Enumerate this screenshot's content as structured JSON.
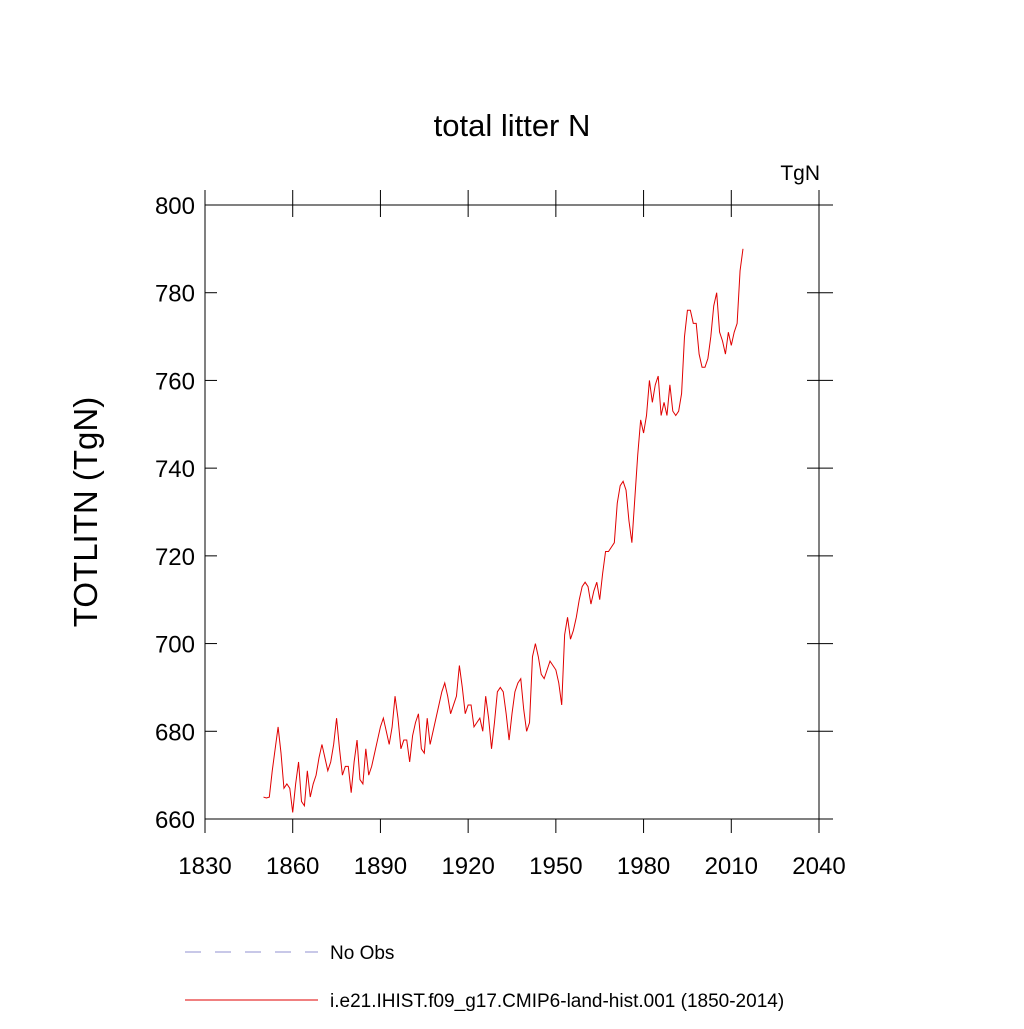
{
  "chart_data": {
    "type": "line",
    "title": "total litter N",
    "units": "TgN",
    "y_label": "TOTLITN  (TgN)",
    "x": [
      1850,
      1851,
      1852,
      1853,
      1854,
      1855,
      1856,
      1857,
      1858,
      1859,
      1860,
      1861,
      1862,
      1863,
      1864,
      1865,
      1866,
      1867,
      1868,
      1869,
      1870,
      1871,
      1872,
      1873,
      1874,
      1875,
      1876,
      1877,
      1878,
      1879,
      1880,
      1881,
      1882,
      1883,
      1884,
      1885,
      1886,
      1887,
      1888,
      1889,
      1890,
      1891,
      1892,
      1893,
      1894,
      1895,
      1896,
      1897,
      1898,
      1899,
      1900,
      1901,
      1902,
      1903,
      1904,
      1905,
      1906,
      1907,
      1908,
      1909,
      1910,
      1911,
      1912,
      1913,
      1914,
      1915,
      1916,
      1917,
      1918,
      1919,
      1920,
      1921,
      1922,
      1923,
      1924,
      1925,
      1926,
      1927,
      1928,
      1929,
      1930,
      1931,
      1932,
      1933,
      1934,
      1935,
      1936,
      1937,
      1938,
      1939,
      1940,
      1941,
      1942,
      1943,
      1944,
      1945,
      1946,
      1947,
      1948,
      1949,
      1950,
      1951,
      1952,
      1953,
      1954,
      1955,
      1956,
      1957,
      1958,
      1959,
      1960,
      1961,
      1962,
      1963,
      1964,
      1965,
      1966,
      1967,
      1968,
      1969,
      1970,
      1971,
      1972,
      1973,
      1974,
      1975,
      1976,
      1977,
      1978,
      1979,
      1980,
      1981,
      1982,
      1983,
      1984,
      1985,
      1986,
      1987,
      1988,
      1989,
      1990,
      1991,
      1992,
      1993,
      1994,
      1995,
      1996,
      1997,
      1998,
      1999,
      2000,
      2001,
      2002,
      2003,
      2004,
      2005,
      2006,
      2007,
      2008,
      2009,
      2010,
      2011,
      2012,
      2013,
      2014
    ],
    "series": [
      {
        "name": "i.e21.IHIST.f09_g17.CMIP6-land-hist.001 (1850-2014)",
        "color": "#e00000",
        "values": [
          665,
          664.8,
          665,
          671,
          676,
          681,
          675,
          667,
          668,
          667,
          661.5,
          668,
          673,
          664,
          663,
          671,
          665,
          668,
          670,
          674,
          677,
          674,
          671,
          673,
          677,
          683,
          676,
          670,
          672,
          672,
          666,
          673,
          678,
          669,
          668,
          676,
          670,
          672,
          675,
          678,
          681,
          683,
          680,
          677,
          681,
          688,
          683,
          676,
          678,
          678,
          673,
          679,
          682,
          684,
          676,
          675,
          683,
          677,
          680,
          683,
          686,
          689,
          691,
          688,
          684,
          686,
          688,
          695,
          690,
          684,
          686,
          686,
          681,
          682,
          683,
          680,
          688,
          683,
          676,
          682,
          689,
          690,
          689,
          684,
          678,
          684,
          689,
          691,
          692,
          685,
          680,
          682,
          697,
          700,
          697,
          693,
          692,
          694,
          696,
          695,
          694,
          691,
          686,
          702,
          706,
          701,
          703,
          706,
          710,
          713,
          714,
          713,
          709,
          712,
          714,
          710,
          716,
          721,
          721,
          722,
          723,
          732,
          736,
          737,
          735,
          728,
          723,
          733,
          743,
          751,
          748,
          752,
          760,
          755,
          759,
          761,
          752,
          755,
          752,
          759,
          753,
          752,
          753,
          757,
          770,
          776,
          776,
          773,
          773,
          766,
          763,
          763,
          765,
          770,
          777,
          780,
          771,
          769,
          766,
          771,
          768,
          771,
          773,
          785,
          790
        ]
      }
    ],
    "obs_legend": {
      "name": "No Obs",
      "color": "#9090d0"
    },
    "xlim": [
      1830,
      2040
    ],
    "xticks": [
      1830,
      1860,
      1890,
      1920,
      1950,
      1980,
      2010,
      2040
    ],
    "ylim": [
      660,
      800
    ],
    "yticks": [
      660,
      680,
      700,
      720,
      740,
      760,
      780,
      800
    ]
  }
}
